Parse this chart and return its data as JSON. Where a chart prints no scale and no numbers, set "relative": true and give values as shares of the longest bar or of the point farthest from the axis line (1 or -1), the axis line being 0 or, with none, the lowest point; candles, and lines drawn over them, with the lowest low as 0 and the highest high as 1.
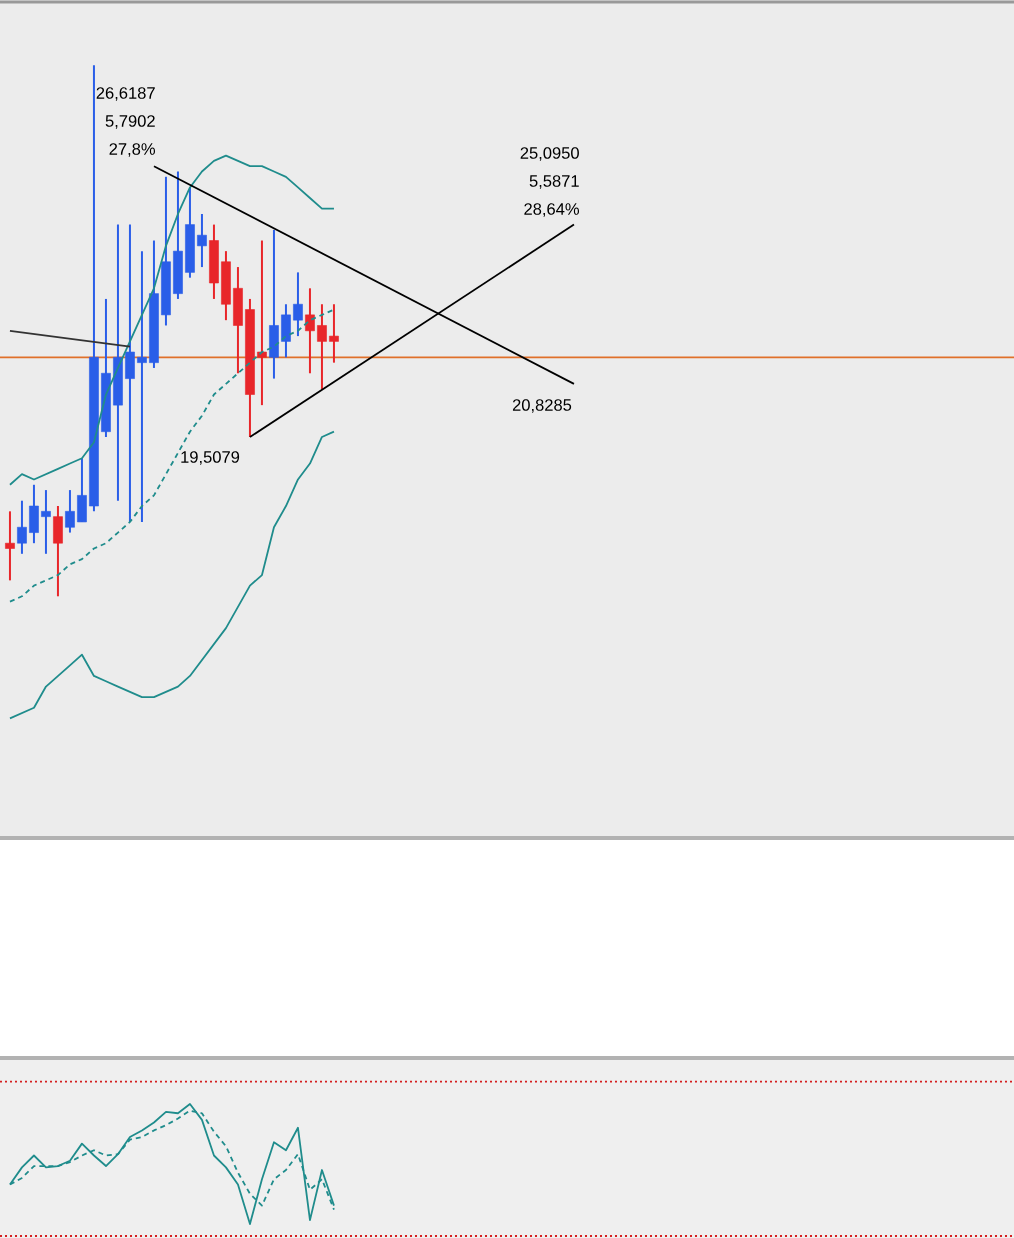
{
  "chart_data": [
    {
      "type": "candlestick",
      "relative": true,
      "categories": [
        null,
        null,
        null,
        null,
        null,
        null,
        null,
        null,
        null,
        null,
        null,
        null,
        null,
        null,
        null,
        null,
        null,
        null,
        null,
        null,
        null,
        null,
        null,
        null,
        null,
        null,
        null,
        null,
        null,
        null,
        null,
        null,
        null,
        null,
        null,
        null,
        null,
        null,
        null,
        null,
        null,
        null,
        null,
        null,
        null,
        null,
        null,
        null
      ],
      "ohlc": [
        [
          0.1,
          0.16,
          0.03,
          0.09
        ],
        [
          0.1,
          0.18,
          0.08,
          0.13
        ],
        [
          0.12,
          0.21,
          0.1,
          0.17
        ],
        [
          0.15,
          0.2,
          0.08,
          0.16
        ],
        [
          0.15,
          0.17,
          0,
          0.1
        ],
        [
          0.13,
          0.2,
          0.12,
          0.16
        ],
        [
          0.14,
          0.26,
          0.14,
          0.19
        ],
        [
          0.17,
          1.0,
          0.16,
          0.45
        ],
        [
          0.31,
          0.56,
          0.3,
          0.42
        ],
        [
          0.36,
          0.7,
          0.18,
          0.45
        ],
        [
          0.41,
          0.7,
          0.14,
          0.46
        ],
        [
          0.44,
          0.65,
          0.14,
          0.45
        ],
        [
          0.44,
          0.67,
          0.43,
          0.57
        ],
        [
          0.53,
          0.79,
          0.51,
          0.63
        ],
        [
          0.57,
          0.8,
          0.56,
          0.65
        ],
        [
          0.61,
          0.77,
          0.6,
          0.7
        ],
        [
          0.66,
          0.72,
          0.62,
          0.68
        ],
        [
          0.67,
          0.7,
          0.56,
          0.59
        ],
        [
          0.63,
          0.65,
          0.52,
          0.55
        ],
        [
          0.58,
          0.62,
          0.42,
          0.51
        ],
        [
          0.54,
          0.56,
          0.3,
          0.38
        ],
        [
          0.46,
          0.67,
          0.36,
          0.45
        ],
        [
          0.45,
          0.69,
          0.41,
          0.51
        ],
        [
          0.48,
          0.55,
          0.45,
          0.53
        ],
        [
          0.52,
          0.61,
          0.49,
          0.55
        ],
        [
          0.53,
          0.58,
          0.42,
          0.5
        ],
        [
          0.51,
          0.55,
          0.39,
          0.48
        ],
        [
          0.49,
          0.55,
          0.44,
          0.48
        ],
        null,
        null,
        null,
        null,
        null,
        null,
        null,
        null,
        null,
        null,
        null,
        null,
        null,
        null,
        null,
        null,
        null,
        null,
        null,
        null
      ],
      "colors": [
        "#e8262a",
        "#2a5ee8",
        "#2a5ee8",
        "#2a5ee8",
        "#e8262a",
        "#2a5ee8",
        "#2a5ee8",
        "#2a5ee8",
        "#2a5ee8",
        "#2a5ee8",
        "#2a5ee8",
        "#2a5ee8",
        "#2a5ee8",
        "#2a5ee8",
        "#2a5ee8",
        "#2a5ee8",
        "#2a5ee8",
        "#e8262a",
        "#e8262a",
        "#e8262a",
        "#e8262a",
        "#e8262a",
        "#2a5ee8",
        "#2a5ee8",
        "#2a5ee8",
        "#e8262a",
        "#e8262a",
        "#e8262a",
        null,
        null,
        null,
        null,
        null,
        null,
        null,
        null,
        null,
        null,
        null,
        null,
        null,
        null,
        null,
        null,
        null,
        null,
        null,
        null
      ],
      "series": [
        {
          "type": "line",
          "color": "#1f8c8c",
          "line_style": "solid",
          "values": [
            0.21,
            0.23,
            0.22,
            0.23,
            0.24,
            0.25,
            0.26,
            0.29,
            0.38,
            0.43,
            0.48,
            0.53,
            0.58,
            0.66,
            0.72,
            0.77,
            0.8,
            0.82,
            0.83,
            0.82,
            0.81,
            0.81,
            0.8,
            0.79,
            0.77,
            0.75,
            0.73,
            0.73,
            null,
            null,
            null,
            null,
            null,
            null,
            null,
            null,
            null,
            null,
            null,
            null,
            null,
            null,
            null,
            null,
            null,
            null,
            null,
            null
          ]
        },
        {
          "type": "line",
          "color": "#1f8c8c",
          "line_style": "dashed",
          "values": [
            -0.01,
            0.0,
            0.02,
            0.03,
            0.04,
            0.06,
            0.07,
            0.09,
            0.1,
            0.12,
            0.14,
            0.17,
            0.19,
            0.23,
            0.27,
            0.31,
            0.34,
            0.38,
            0.4,
            0.42,
            0.44,
            0.46,
            0.47,
            0.49,
            0.5,
            0.52,
            0.53,
            0.54,
            null,
            null,
            null,
            null,
            null,
            null,
            null,
            null,
            null,
            null,
            null,
            null,
            null,
            null,
            null,
            null,
            null,
            null,
            null,
            null
          ]
        },
        {
          "type": "line",
          "color": "#1f8c8c",
          "line_style": "solid",
          "values": [
            -0.23,
            -0.22,
            -0.21,
            -0.17,
            -0.15,
            -0.13,
            -0.11,
            -0.15,
            -0.16,
            -0.17,
            -0.18,
            -0.19,
            -0.19,
            -0.18,
            -0.17,
            -0.15,
            -0.12,
            -0.09,
            -0.06,
            -0.02,
            0.02,
            0.04,
            0.13,
            0.17,
            0.22,
            0.25,
            0.3,
            0.31,
            null,
            null,
            null,
            null,
            null,
            null,
            null,
            null,
            null,
            null,
            null,
            null,
            null,
            null,
            null,
            null,
            null,
            null,
            null,
            null
          ]
        },
        {
          "type": "line",
          "color": "#000000",
          "line_style": "solid",
          "values": [
            null,
            null,
            null,
            null,
            null,
            null,
            null,
            null,
            null,
            null,
            null,
            null,
            0.81,
            null,
            null,
            null,
            null,
            null,
            null,
            null,
            null,
            null,
            null,
            null,
            null,
            null,
            null,
            null,
            null,
            null,
            null,
            null,
            null,
            null,
            null,
            null,
            null,
            null,
            null,
            null,
            null,
            null,
            null,
            null,
            null,
            null,
            null,
            0.4
          ]
        },
        {
          "type": "line",
          "color": "#000000",
          "line_style": "solid",
          "values": [
            null,
            null,
            null,
            null,
            null,
            null,
            null,
            null,
            null,
            null,
            null,
            null,
            null,
            null,
            null,
            null,
            null,
            null,
            null,
            null,
            0.3,
            null,
            null,
            null,
            null,
            null,
            null,
            null,
            null,
            null,
            null,
            null,
            null,
            null,
            null,
            null,
            null,
            null,
            null,
            null,
            null,
            null,
            null,
            null,
            null,
            null,
            null,
            0.7
          ]
        },
        {
          "type": "line",
          "color": "#333333",
          "line_style": "solid",
          "values": [
            0.5,
            null,
            null,
            null,
            null,
            null,
            null,
            null,
            null,
            null,
            0.47,
            null,
            null,
            null,
            null,
            null,
            null,
            null,
            null,
            null,
            null,
            null,
            null,
            null,
            null,
            null,
            null,
            null,
            null,
            null,
            null,
            null,
            null,
            null,
            null,
            null,
            null,
            null,
            null,
            null,
            null,
            null,
            null,
            null,
            null,
            null,
            null,
            null
          ]
        }
      ],
      "ref_lines": [
        {
          "axis": "y",
          "value": 0.45,
          "color": "#e0702a",
          "line_style": "solid"
        }
      ],
      "annotations": [
        "26,6187",
        "5,7902",
        "27,8%",
        "25,0950",
        "5,5871",
        "28,64%",
        "20,8285",
        "19,5079"
      ]
    },
    {
      "type": "line",
      "relative": true,
      "categories": [
        null,
        null,
        null,
        null,
        null,
        null,
        null,
        null,
        null,
        null,
        null,
        null,
        null,
        null,
        null,
        null,
        null,
        null,
        null,
        null,
        null,
        null,
        null,
        null,
        null,
        null,
        null,
        null
      ],
      "series": [
        {
          "color": "#1f8c8c",
          "line_style": "solid",
          "values": [
            0.39,
            0.52,
            0.61,
            0.52,
            0.53,
            0.57,
            0.7,
            0.61,
            0.53,
            0.62,
            0.75,
            0.8,
            0.86,
            0.94,
            0.93,
            1.0,
            0.88,
            0.61,
            0.52,
            0.39,
            0.09,
            0.43,
            0.71,
            0.65,
            0.82,
            0.12,
            0.5,
            0.23
          ]
        },
        {
          "color": "#1f8c8c",
          "line_style": "dashed",
          "values": [
            0.39,
            0.44,
            0.53,
            0.53,
            0.53,
            0.56,
            0.61,
            0.65,
            0.61,
            0.62,
            0.73,
            0.75,
            0.8,
            0.84,
            0.89,
            0.95,
            0.93,
            0.79,
            0.68,
            0.48,
            0.32,
            0.23,
            0.43,
            0.5,
            0.62,
            0.35,
            0.43,
            0.2
          ]
        }
      ],
      "ref_lines": [
        {
          "axis": "y",
          "value": 1.17,
          "color": "#d42020",
          "line_style": "dotted"
        },
        {
          "axis": "y",
          "value": 0,
          "color": "#d42020",
          "line_style": "dotted"
        }
      ]
    }
  ]
}
